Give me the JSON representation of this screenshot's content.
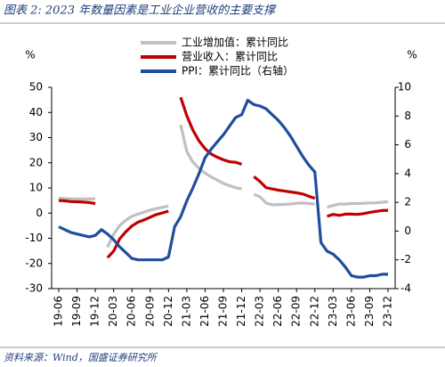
{
  "chart_data": {
    "type": "line",
    "title": "图表 2:  2023 年数量因素是工业企业营收的主要支撑",
    "source": "资料来源：Wind，国盛证券研究所",
    "y_label": "%",
    "y2_label": "%",
    "categories": [
      "19-06",
      null,
      null,
      "19-09",
      null,
      null,
      "19-12",
      null,
      null,
      "20-03",
      null,
      null,
      "20-06",
      null,
      null,
      "20-09",
      null,
      null,
      "20-12",
      null,
      null,
      "21-03",
      null,
      null,
      "21-06",
      null,
      null,
      "21-09",
      null,
      null,
      "21-12",
      null,
      null,
      "22-03",
      null,
      null,
      "22-06",
      null,
      null,
      "22-09",
      null,
      null,
      "22-12",
      null,
      null,
      "23-03",
      null,
      null,
      "23-06",
      null,
      null,
      "23-09",
      null,
      null,
      "23-12"
    ],
    "ylim": [
      -30,
      50
    ],
    "yticks": [
      -30,
      -20,
      -10,
      0,
      10,
      20,
      30,
      40,
      50
    ],
    "y2lim": [
      -4,
      10
    ],
    "y2ticks": [
      -4,
      -2,
      0,
      2,
      4,
      6,
      8,
      10
    ],
    "series": [
      {
        "name": "工业增加值：累计同比",
        "color": "#c0c0c0",
        "values": [
          6.0,
          5.8,
          5.6,
          5.6,
          5.6,
          5.6,
          5.7,
          null,
          -13.5,
          -8.4,
          -4.9,
          -2.8,
          -1.3,
          -0.4,
          0.4,
          1.2,
          1.8,
          2.3,
          2.8,
          null,
          35.1,
          24.5,
          20.3,
          17.8,
          15.9,
          14.4,
          13.1,
          11.8,
          10.9,
          10.1,
          9.6,
          null,
          7.5,
          6.5,
          4.0,
          3.3,
          3.4,
          3.5,
          3.6,
          3.9,
          4.0,
          3.8,
          3.6,
          null,
          2.4,
          3.0,
          3.6,
          3.6,
          3.8,
          3.8,
          3.9,
          4.0,
          4.1,
          4.3,
          4.6
        ]
      },
      {
        "name": "营业收入：累计同比",
        "color": "#c00000",
        "values": [
          5.0,
          4.9,
          4.6,
          4.5,
          4.4,
          4.2,
          3.8,
          null,
          -17.7,
          -15.1,
          -10.2,
          -7.4,
          -5.1,
          -3.6,
          -2.7,
          -1.6,
          -0.6,
          0.1,
          0.8,
          null,
          46,
          38.7,
          33,
          28.7,
          25.6,
          23.5,
          22.2,
          21.2,
          20.4,
          20.2,
          19.4,
          null,
          14.5,
          12.6,
          10.1,
          9.6,
          9.1,
          8.8,
          8.4,
          8.1,
          7.6,
          6.7,
          5.9,
          null,
          -1.3,
          -0.5,
          -0.9,
          -0.4,
          -0.4,
          -0.5,
          -0.2,
          0.3,
          0.7,
          1.0,
          1.1
        ]
      },
      {
        "name": "PPI：累计同比（右轴）",
        "color": "#1f4e9c",
        "axis": "y2",
        "values": [
          0.3,
          0.1,
          -0.1,
          -0.2,
          -0.3,
          -0.4,
          -0.3,
          0.1,
          -0.2,
          -0.6,
          -1.1,
          -1.5,
          -1.9,
          -2.0,
          -2.0,
          -2.0,
          -2.0,
          -2.0,
          -1.8,
          0.3,
          1.0,
          2.1,
          3.0,
          4.0,
          5.1,
          5.7,
          6.2,
          6.7,
          7.3,
          7.9,
          8.1,
          9.1,
          8.8,
          8.7,
          8.5,
          8.1,
          7.7,
          7.2,
          6.6,
          5.9,
          5.2,
          4.6,
          4.1,
          -0.8,
          -1.4,
          -1.6,
          -2.0,
          -2.5,
          -3.1,
          -3.2,
          -3.2,
          -3.1,
          -3.1,
          -3.0,
          -3.0
        ]
      }
    ]
  }
}
